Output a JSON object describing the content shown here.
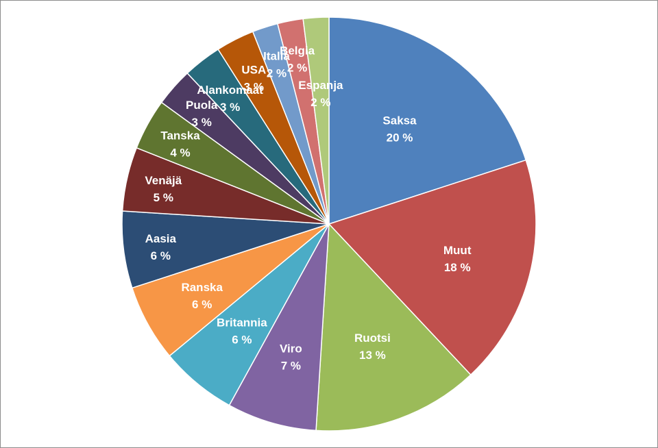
{
  "chart_data": {
    "type": "pie",
    "title": "",
    "legend": "none",
    "start_angle_deg": 0,
    "direction": "clockwise",
    "slices": [
      {
        "label": "Saksa",
        "value": 20,
        "value_label": "20 %",
        "color": "#4f81bd"
      },
      {
        "label": "Muut",
        "value": 18,
        "value_label": "18 %",
        "color": "#c0504d"
      },
      {
        "label": "Ruotsi",
        "value": 13,
        "value_label": "13 %",
        "color": "#9bbb59"
      },
      {
        "label": "Viro",
        "value": 7,
        "value_label": "7 %",
        "color": "#8064a2"
      },
      {
        "label": "Britannia",
        "value": 6,
        "value_label": "6 %",
        "color": "#4bacc6"
      },
      {
        "label": "Ranska",
        "value": 6,
        "value_label": "6 %",
        "color": "#f79646"
      },
      {
        "label": "Aasia",
        "value": 6,
        "value_label": "6 %",
        "color": "#2c4d75"
      },
      {
        "label": "Venäjä",
        "value": 5,
        "value_label": "5 %",
        "color": "#772c2a"
      },
      {
        "label": "Tanska",
        "value": 4,
        "value_label": "4 %",
        "color": "#5f7530"
      },
      {
        "label": "Puola",
        "value": 3,
        "value_label": "3 %",
        "color": "#4d3b62"
      },
      {
        "label": "Alankomaat",
        "value": 3,
        "value_label": "3 %",
        "color": "#276a7c"
      },
      {
        "label": "USA",
        "value": 3,
        "value_label": "3 %",
        "color": "#b65708"
      },
      {
        "label": "Italia",
        "value": 2,
        "value_label": "2 %",
        "color": "#729aca"
      },
      {
        "label": "Belgia",
        "value": 2,
        "value_label": "2 %",
        "color": "#d1716f"
      },
      {
        "label": "Espanja",
        "value": 2,
        "value_label": "2 %",
        "color": "#afc97a"
      }
    ]
  }
}
